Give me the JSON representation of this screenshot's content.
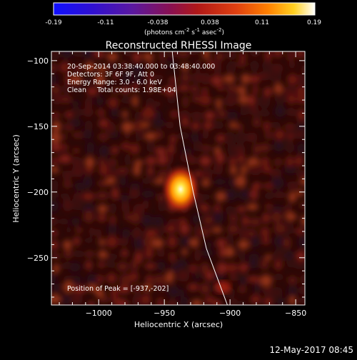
{
  "colorbar": {
    "ticks": [
      "-0.19",
      "-0.11",
      "-0.038",
      "0.038",
      "0.11",
      "0.19"
    ],
    "unit_main": "(photons cm",
    "unit_exp1": "-2",
    "unit_mid": " s",
    "unit_exp2": "-1",
    "unit_asec": " asec",
    "unit_exp3": "-2",
    "unit_end": ")",
    "range": [
      -0.19,
      0.19
    ]
  },
  "chart_data": {
    "type": "heatmap",
    "title": "Reconstructed RHESSI Image",
    "xlabel": "Heliocentric X (arcsec)",
    "ylabel": "Heliocentric Y (arcsec)",
    "xlim": [
      -1036,
      -843
    ],
    "ylim": [
      -286,
      -93
    ],
    "xticks": [
      {
        "value": -1000,
        "label": "−1000"
      },
      {
        "value": -950,
        "label": "−950"
      },
      {
        "value": -900,
        "label": "−900"
      },
      {
        "value": -850,
        "label": "−850"
      }
    ],
    "yticks": [
      {
        "value": -100,
        "label": "−100"
      },
      {
        "value": -150,
        "label": "−150"
      },
      {
        "value": -200,
        "label": "−200"
      },
      {
        "value": -250,
        "label": "−250"
      }
    ],
    "peak": {
      "x": -937,
      "y": -202
    },
    "limb_curve": [
      [
        -944,
        -93
      ],
      [
        -938,
        -150
      ],
      [
        -928,
        -200
      ],
      [
        -918,
        -243
      ],
      [
        -902,
        -286
      ]
    ],
    "colormap": "rainbow-to-white (blue-purple-red-orange-yellow-white)",
    "annotations": [
      "20-Sep-2014 03:38:40.000 to 03:48:40.000",
      "Detectors: 3F 6F 9F, Att 0",
      "Energy Range: 3.0 - 6.0 keV",
      "Clean     Total counts: 1.98E+04",
      "Position of Peak = [-937,-202]"
    ]
  },
  "footer": {
    "timestamp": "12-May-2017 08:45"
  }
}
